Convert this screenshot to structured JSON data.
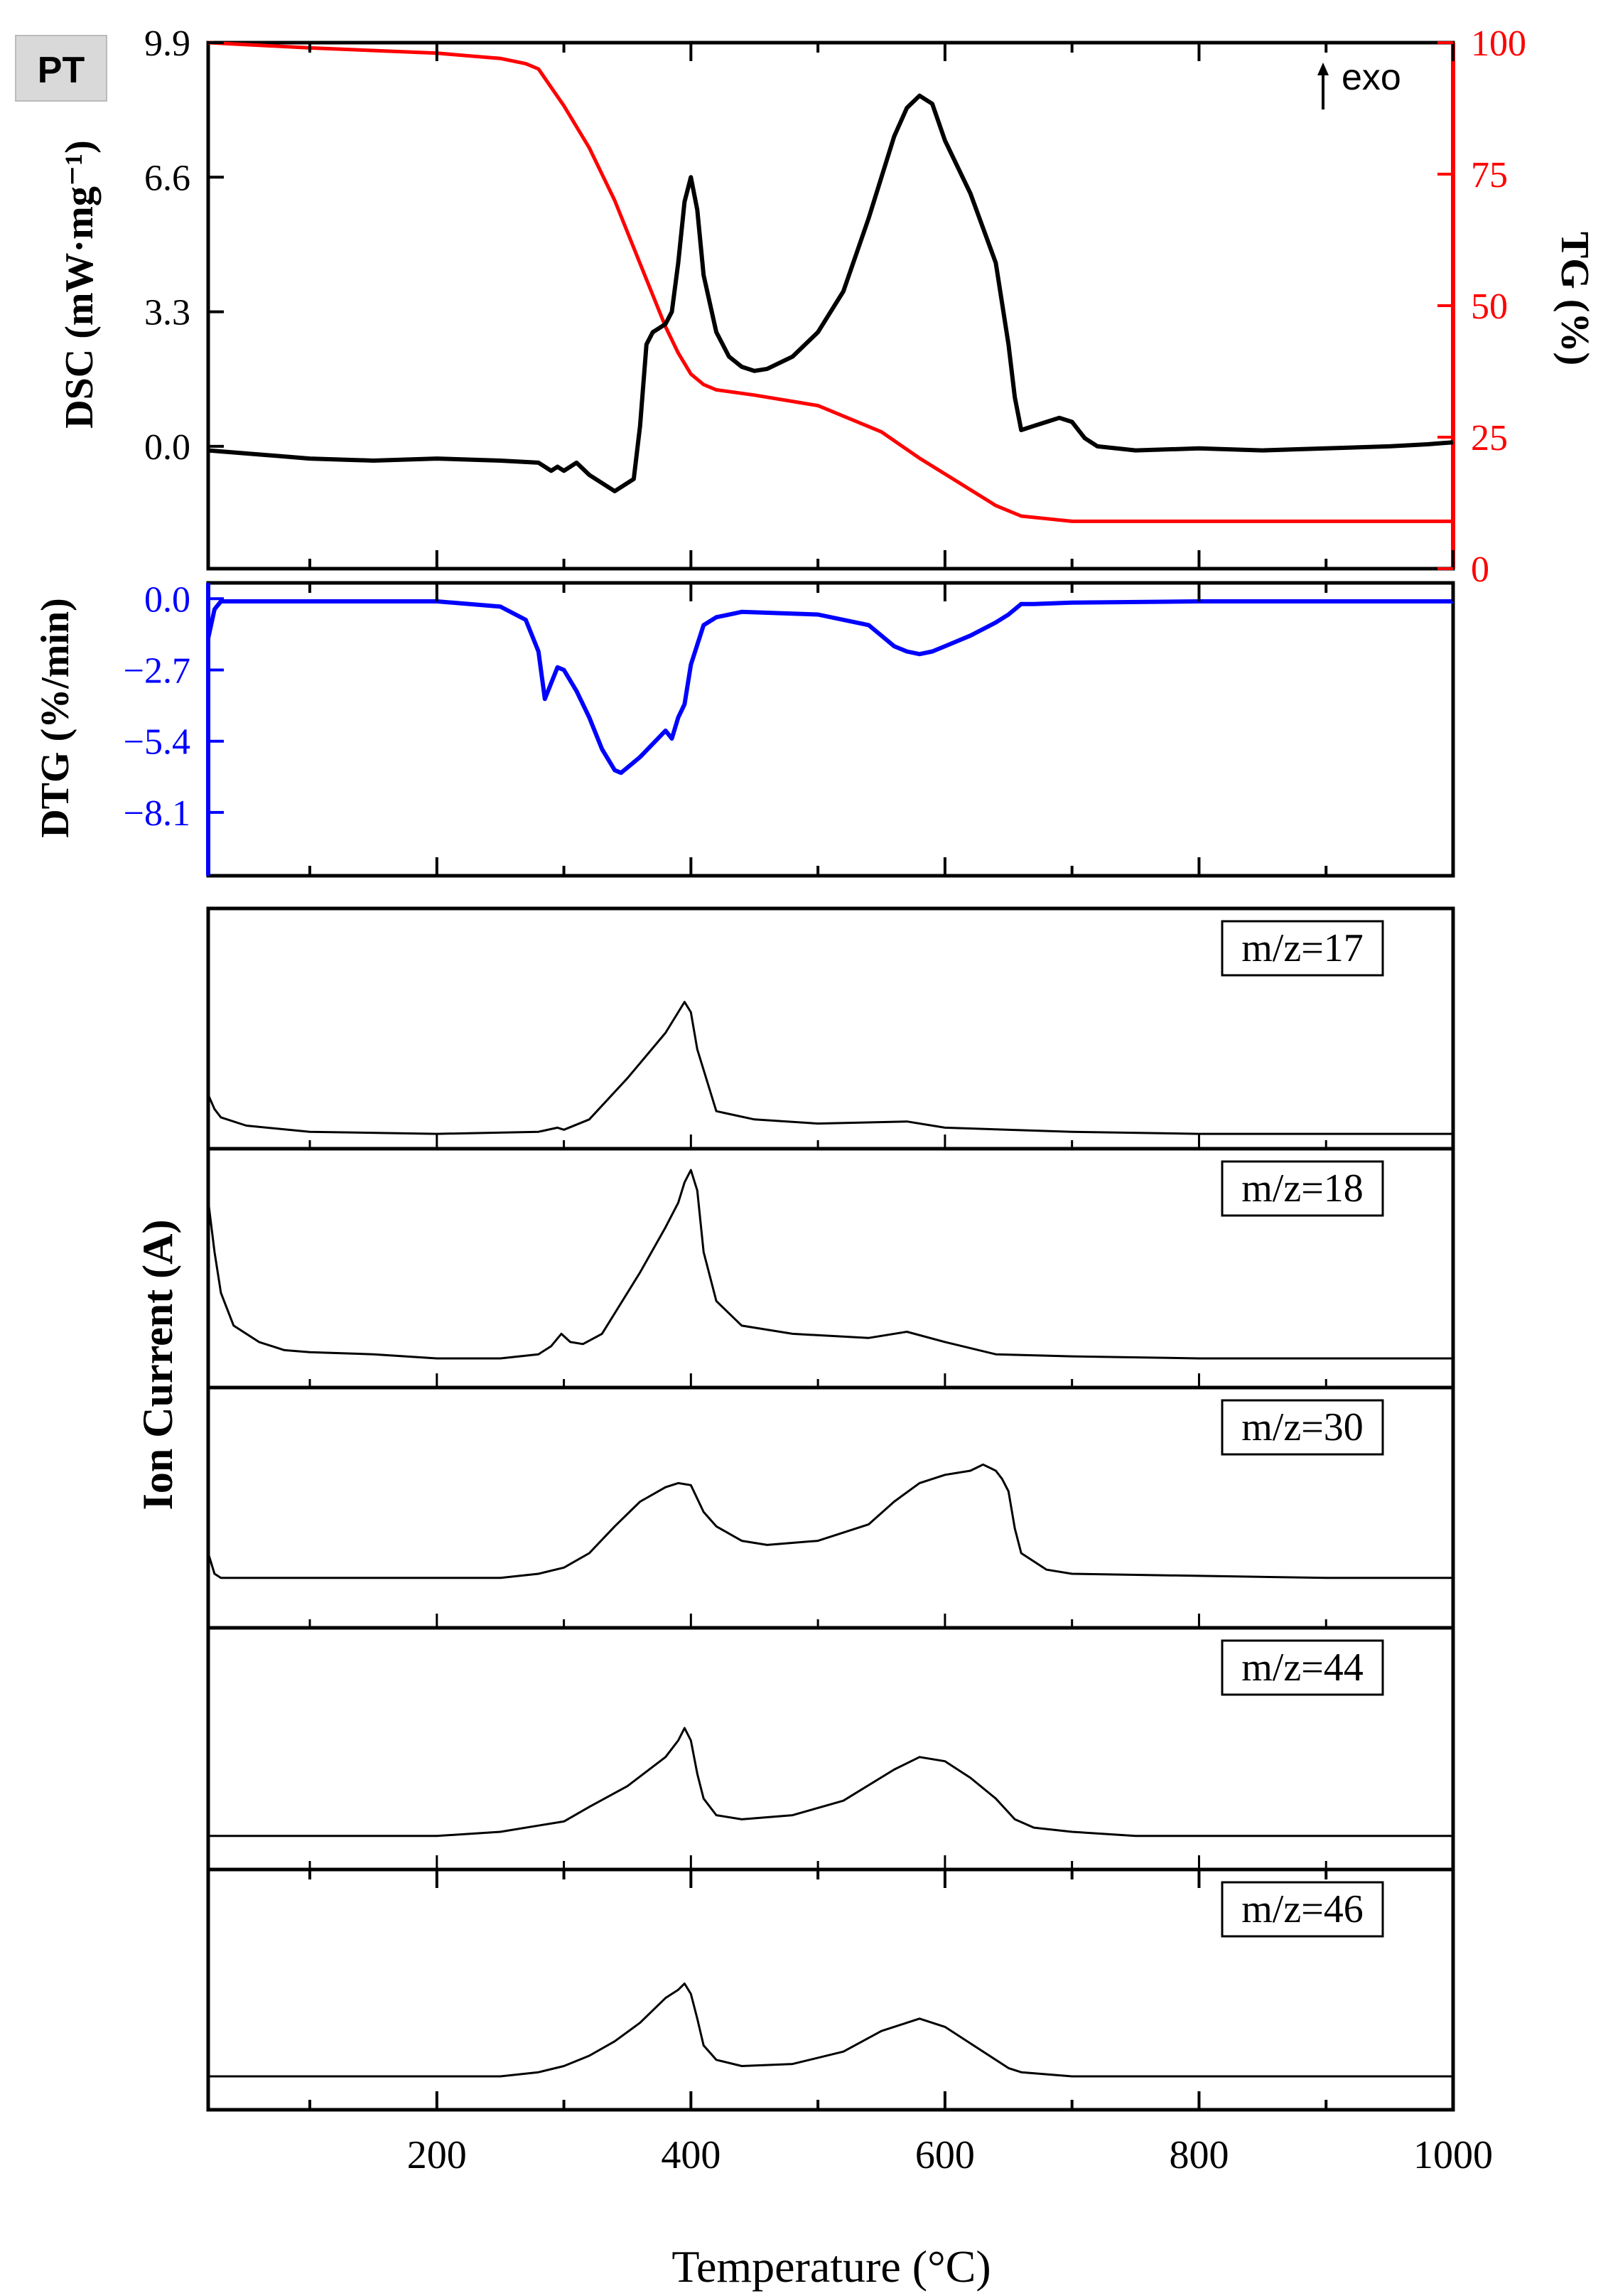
{
  "panel_label": "PT",
  "exo_label": "exo",
  "x_axis": {
    "label": "Temperature (°C)",
    "ticks": [
      "200",
      "400",
      "600",
      "800",
      "1000"
    ],
    "range": [
      20,
      1000
    ]
  },
  "colors": {
    "dsc": "#000000",
    "tg": "#ff0000",
    "dtg": "#0000ff",
    "ms": "#000000"
  },
  "chart_data": [
    {
      "type": "line",
      "title": "",
      "xlabel": "",
      "ylabel": "DSC (mW·mg⁻¹)",
      "y2label": "TG (%)",
      "ylim": [
        -3.0,
        9.9
      ],
      "y2lim": [
        0,
        100
      ],
      "yticks": [
        "9.9",
        "6.6",
        "3.3",
        "0.0"
      ],
      "y2ticks": [
        "100",
        "75",
        "50",
        "25",
        "0"
      ],
      "series": [
        {
          "axis": "left",
          "x": [
            20,
            100,
            150,
            200,
            250,
            280,
            290,
            295,
            300,
            310,
            320,
            340,
            355,
            360,
            365,
            370,
            375,
            380,
            385,
            390,
            395,
            400,
            405,
            410,
            420,
            430,
            440,
            450,
            460,
            480,
            500,
            520,
            540,
            560,
            570,
            580,
            590,
            600,
            620,
            640,
            650,
            655,
            660,
            670,
            680,
            690,
            700,
            710,
            720,
            750,
            800,
            850,
            900,
            950,
            980,
            1000
          ],
          "y": [
            -0.1,
            -0.3,
            -0.35,
            -0.3,
            -0.35,
            -0.4,
            -0.6,
            -0.5,
            -0.6,
            -0.4,
            -0.7,
            -1.1,
            -0.8,
            0.5,
            2.5,
            2.8,
            2.9,
            3.0,
            3.3,
            4.5,
            6.0,
            6.6,
            5.8,
            4.2,
            2.8,
            2.2,
            1.95,
            1.85,
            1.9,
            2.2,
            2.8,
            3.8,
            5.6,
            7.6,
            8.3,
            8.6,
            8.4,
            7.5,
            6.2,
            4.5,
            2.5,
            1.2,
            0.4,
            0.5,
            0.6,
            0.7,
            0.6,
            0.2,
            0.0,
            -0.1,
            -0.05,
            -0.1,
            -0.05,
            0.0,
            0.05,
            0.1
          ]
        },
        {
          "axis": "right",
          "x": [
            20,
            100,
            200,
            250,
            270,
            280,
            300,
            320,
            340,
            360,
            380,
            390,
            400,
            410,
            420,
            450,
            500,
            550,
            580,
            600,
            620,
            640,
            660,
            680,
            700,
            800,
            900,
            1000
          ],
          "y": [
            100,
            99,
            98,
            97,
            96,
            95,
            88,
            80,
            70,
            58,
            46,
            41,
            37,
            35,
            34,
            33,
            31,
            26,
            21,
            18,
            15,
            12,
            10,
            9.5,
            9,
            9,
            9,
            9
          ]
        }
      ]
    },
    {
      "type": "line",
      "ylabel": "DTG (%/min)",
      "ylim": [
        -10.5,
        0.6
      ],
      "yticks": [
        "0.0",
        "-2.7",
        "-5.4",
        "-8.1"
      ],
      "series": [
        {
          "x": [
            20,
            25,
            30,
            100,
            200,
            250,
            270,
            280,
            285,
            290,
            295,
            300,
            310,
            320,
            330,
            340,
            345,
            350,
            360,
            370,
            380,
            385,
            390,
            395,
            400,
            410,
            420,
            440,
            500,
            540,
            560,
            570,
            580,
            590,
            600,
            620,
            640,
            650,
            660,
            670,
            700,
            800,
            900,
            1000
          ],
          "y": [
            -1.5,
            -0.4,
            -0.1,
            -0.1,
            -0.1,
            -0.3,
            -0.8,
            -2.0,
            -3.8,
            -3.2,
            -2.6,
            -2.7,
            -3.5,
            -4.5,
            -5.7,
            -6.5,
            -6.6,
            -6.4,
            -6.0,
            -5.5,
            -5.0,
            -5.3,
            -4.5,
            -4.0,
            -2.5,
            -1.0,
            -0.7,
            -0.5,
            -0.6,
            -1.0,
            -1.8,
            -2.0,
            -2.1,
            -2.0,
            -1.8,
            -1.4,
            -0.9,
            -0.6,
            -0.2,
            -0.2,
            -0.15,
            -0.1,
            -0.1,
            -0.1
          ]
        }
      ]
    },
    {
      "type": "line",
      "ylabel": "Ion Current (A)",
      "panels": [
        {
          "name": "m/z=17",
          "x": [
            20,
            25,
            30,
            50,
            100,
            200,
            280,
            295,
            300,
            320,
            350,
            380,
            395,
            400,
            405,
            420,
            450,
            500,
            570,
            600,
            700,
            800,
            1000
          ],
          "y": [
            0.2,
            0.13,
            0.09,
            0.05,
            0.02,
            0.01,
            0.02,
            0.04,
            0.03,
            0.08,
            0.28,
            0.5,
            0.65,
            0.6,
            0.42,
            0.12,
            0.08,
            0.06,
            0.07,
            0.04,
            0.02,
            0.01,
            0.01
          ]
        },
        {
          "name": "m/z=18",
          "x": [
            20,
            25,
            30,
            40,
            60,
            80,
            100,
            150,
            200,
            250,
            280,
            290,
            298,
            305,
            315,
            330,
            360,
            380,
            390,
            395,
            400,
            405,
            410,
            420,
            440,
            480,
            540,
            570,
            600,
            640,
            700,
            800,
            900,
            1000
          ],
          "y": [
            0.85,
            0.6,
            0.4,
            0.24,
            0.16,
            0.12,
            0.11,
            0.1,
            0.08,
            0.08,
            0.1,
            0.14,
            0.2,
            0.16,
            0.15,
            0.2,
            0.5,
            0.72,
            0.84,
            0.94,
            1.0,
            0.9,
            0.6,
            0.36,
            0.24,
            0.2,
            0.18,
            0.21,
            0.16,
            0.1,
            0.09,
            0.08,
            0.08,
            0.08
          ]
        },
        {
          "name": "m/z=30",
          "x": [
            20,
            25,
            30,
            100,
            200,
            250,
            280,
            300,
            320,
            340,
            360,
            380,
            390,
            400,
            410,
            420,
            440,
            460,
            500,
            540,
            560,
            580,
            600,
            620,
            630,
            640,
            645,
            650,
            655,
            660,
            680,
            700,
            800,
            900,
            1000
          ],
          "y": [
            0.3,
            0.2,
            0.18,
            0.18,
            0.18,
            0.18,
            0.2,
            0.23,
            0.3,
            0.43,
            0.55,
            0.62,
            0.64,
            0.63,
            0.5,
            0.43,
            0.36,
            0.34,
            0.36,
            0.44,
            0.55,
            0.64,
            0.68,
            0.7,
            0.73,
            0.7,
            0.66,
            0.6,
            0.42,
            0.3,
            0.22,
            0.2,
            0.19,
            0.18,
            0.18
          ]
        },
        {
          "name": "m/z=44",
          "x": [
            20,
            50,
            100,
            200,
            250,
            280,
            300,
            320,
            350,
            380,
            390,
            395,
            400,
            405,
            410,
            420,
            440,
            480,
            520,
            560,
            580,
            600,
            620,
            640,
            655,
            670,
            700,
            750,
            800,
            900,
            1000
          ],
          "y": [
            0.1,
            0.1,
            0.1,
            0.1,
            0.12,
            0.15,
            0.17,
            0.24,
            0.34,
            0.48,
            0.56,
            0.62,
            0.56,
            0.4,
            0.28,
            0.2,
            0.18,
            0.2,
            0.27,
            0.42,
            0.48,
            0.46,
            0.38,
            0.28,
            0.18,
            0.14,
            0.12,
            0.1,
            0.1,
            0.1,
            0.1
          ]
        },
        {
          "name": "m/z=46",
          "x": [
            20,
            100,
            200,
            250,
            280,
            300,
            320,
            340,
            360,
            380,
            390,
            395,
            400,
            405,
            410,
            420,
            440,
            480,
            520,
            550,
            570,
            580,
            600,
            620,
            640,
            650,
            660,
            680,
            700,
            800,
            900,
            1000
          ],
          "y": [
            0.1,
            0.1,
            0.1,
            0.1,
            0.12,
            0.15,
            0.2,
            0.27,
            0.36,
            0.48,
            0.52,
            0.55,
            0.5,
            0.38,
            0.25,
            0.18,
            0.15,
            0.16,
            0.22,
            0.32,
            0.36,
            0.38,
            0.34,
            0.26,
            0.18,
            0.14,
            0.12,
            0.11,
            0.1,
            0.1,
            0.1,
            0.1
          ]
        }
      ]
    }
  ]
}
